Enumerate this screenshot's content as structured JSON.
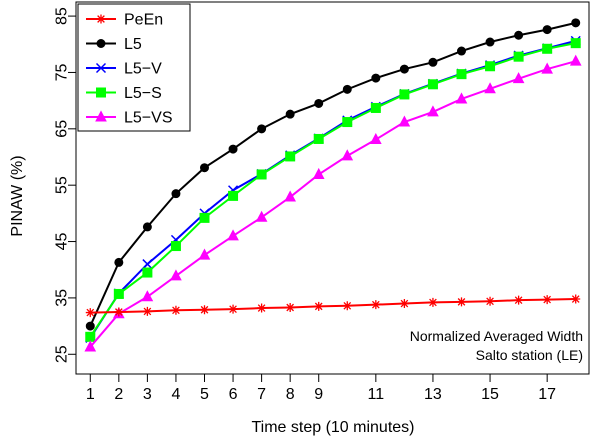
{
  "chart_data": {
    "type": "line",
    "title": "",
    "xlabel": "Time step (10 minutes)",
    "ylabel": "PINAW (%)",
    "xlim": [
      0.5,
      18.5
    ],
    "ylim": [
      21.5,
      87.5
    ],
    "xticks": [
      1,
      2,
      3,
      4,
      5,
      6,
      7,
      8,
      9,
      11,
      13,
      15,
      17
    ],
    "yticks": [
      25,
      35,
      45,
      55,
      65,
      75,
      85
    ],
    "x": [
      1,
      2,
      3,
      4,
      5,
      6,
      7,
      8,
      9,
      10,
      11,
      12,
      13,
      14,
      15,
      16,
      17,
      18
    ],
    "legend_position": "top-left",
    "annotation": [
      "Normalized Averaged Width",
      "Salto station (LE)"
    ],
    "series": [
      {
        "name": "PeEn",
        "color": "#ff0000",
        "marker": "asterisk",
        "values": [
          32.4,
          32.5,
          32.6,
          32.8,
          32.9,
          33.0,
          33.2,
          33.3,
          33.5,
          33.6,
          33.8,
          34.0,
          34.2,
          34.3,
          34.4,
          34.6,
          34.7,
          34.8
        ]
      },
      {
        "name": "L5",
        "color": "#000000",
        "marker": "circle",
        "values": [
          30.0,
          41.3,
          47.6,
          53.5,
          58.1,
          61.4,
          65.0,
          67.6,
          69.5,
          72.0,
          74.0,
          75.6,
          76.8,
          78.8,
          80.4,
          81.6,
          82.6,
          83.8
        ]
      },
      {
        "name": "L5−V",
        "color": "#0000ff",
        "marker": "x",
        "values": [
          27.9,
          35.8,
          41.0,
          45.3,
          50.0,
          54.1,
          57.0,
          60.3,
          63.3,
          66.5,
          68.9,
          71.2,
          73.0,
          74.8,
          76.3,
          78.0,
          79.3,
          80.6
        ]
      },
      {
        "name": "L5−S",
        "color": "#00ff00",
        "marker": "square",
        "values": [
          28.1,
          35.7,
          39.5,
          44.2,
          49.2,
          53.1,
          56.9,
          60.1,
          63.2,
          66.2,
          68.7,
          71.1,
          72.9,
          74.7,
          76.1,
          77.8,
          79.2,
          80.2
        ]
      },
      {
        "name": "L5−VS",
        "color": "#ff00ff",
        "marker": "triangle",
        "values": [
          26.3,
          32.2,
          35.2,
          38.9,
          42.6,
          46.0,
          49.3,
          52.9,
          56.9,
          60.2,
          63.1,
          66.2,
          68.0,
          70.3,
          72.1,
          73.9,
          75.6,
          77.0
        ]
      }
    ]
  }
}
